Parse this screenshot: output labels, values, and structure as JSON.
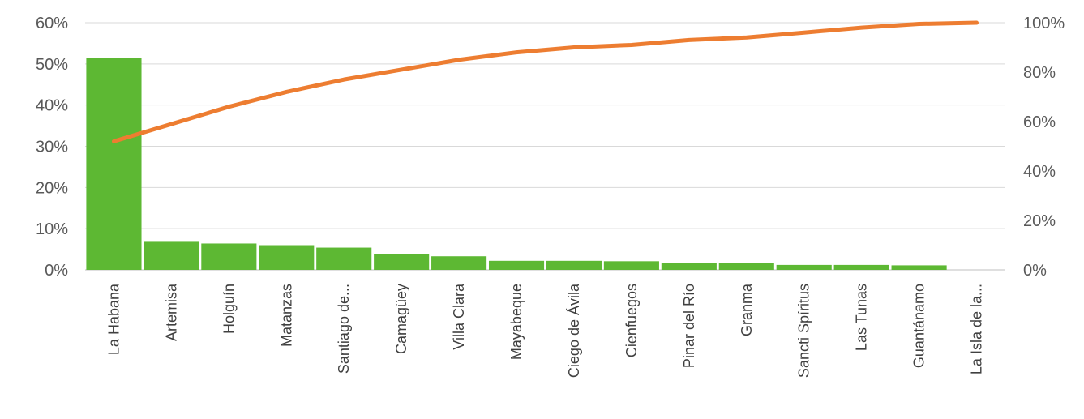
{
  "chart_data": {
    "type": "bar",
    "title": "",
    "xlabel": "",
    "ylabel": "",
    "categories": [
      "La Habana",
      "Artemisa",
      "Holguín",
      "Matanzas",
      "Santiago de...",
      "Camagüey",
      "Villa Clara",
      "Mayabeque",
      "Ciego de Ávila",
      "Cienfuegos",
      "Pinar del Río",
      "Granma",
      "Sancti Spíritus",
      "Las Tunas",
      "Guantánamo",
      "La Isla de la..."
    ],
    "series": [
      {
        "type": "bar",
        "axis": "left",
        "color": "#5db833",
        "values": [
          51.5,
          7.0,
          6.4,
          6.0,
          5.4,
          3.8,
          3.3,
          2.2,
          2.2,
          2.1,
          1.6,
          1.6,
          1.2,
          1.2,
          1.1,
          0
        ]
      },
      {
        "type": "line",
        "axis": "right",
        "color": "#ed7d31",
        "values": [
          52,
          59,
          66,
          72,
          77,
          81,
          85,
          88,
          90,
          91,
          93,
          94,
          96,
          98,
          99.5,
          100
        ]
      }
    ],
    "y_left": {
      "ylim": [
        0,
        60
      ],
      "ticks": [
        "0%",
        "10%",
        "20%",
        "30%",
        "40%",
        "50%",
        "60%"
      ]
    },
    "y_right": {
      "ylim": [
        0,
        100
      ],
      "ticks": [
        "0%",
        "20%",
        "40%",
        "60%",
        "80%",
        "100%"
      ]
    },
    "grid": true,
    "legend": "none"
  }
}
